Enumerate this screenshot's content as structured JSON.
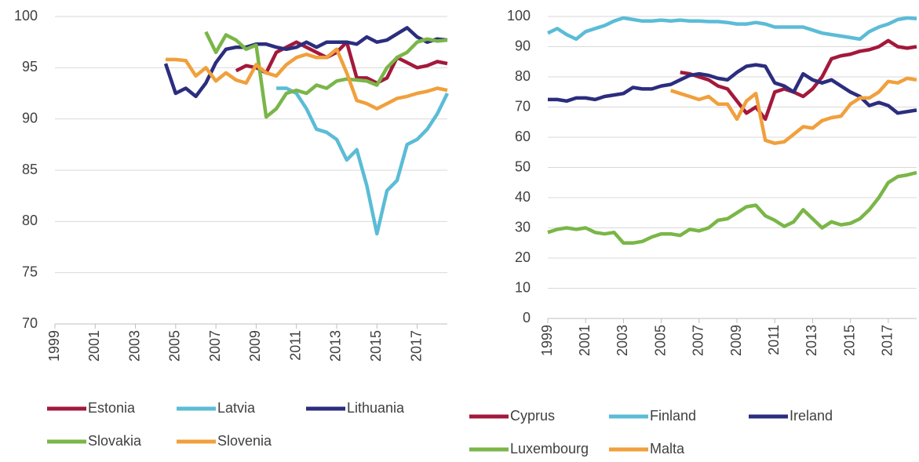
{
  "chart_data": [
    {
      "type": "line",
      "x": [
        1999,
        1999.5,
        2000,
        2000.5,
        2001,
        2001.5,
        2002,
        2002.5,
        2003,
        2003.5,
        2004,
        2004.5,
        2005,
        2005.5,
        2006,
        2006.5,
        2007,
        2007.5,
        2008,
        2008.5,
        2009,
        2009.5,
        2010,
        2010.5,
        2011,
        2011.5,
        2012,
        2012.5,
        2013,
        2013.5,
        2014,
        2014.5,
        2015,
        2015.5,
        2016,
        2016.5,
        2017,
        2017.5,
        2018,
        2018.5
      ],
      "xlim": [
        1999,
        2018.5
      ],
      "xticks": [
        1999,
        2001,
        2003,
        2005,
        2007,
        2009,
        2011,
        2013,
        2015,
        2017
      ],
      "ylim": [
        70,
        100
      ],
      "yticks": [
        70,
        75,
        80,
        85,
        90,
        95,
        100
      ],
      "grid": true,
      "series": [
        {
          "name": "Estonia",
          "color": "#a3193b",
          "values": [
            null,
            null,
            null,
            null,
            null,
            null,
            null,
            null,
            null,
            null,
            null,
            null,
            null,
            null,
            null,
            null,
            null,
            null,
            94.7,
            95.2,
            95,
            94.5,
            96.5,
            97,
            97.5,
            97,
            96.5,
            96,
            96.5,
            97.5,
            94,
            94,
            93.5,
            94,
            96,
            95.5,
            95,
            95.2,
            95.6,
            95.4
          ]
        },
        {
          "name": "Latvia",
          "color": "#5bbcd6",
          "values": [
            null,
            null,
            null,
            null,
            null,
            null,
            null,
            null,
            null,
            null,
            null,
            null,
            null,
            null,
            null,
            null,
            null,
            null,
            null,
            null,
            null,
            null,
            93,
            93,
            92.5,
            91,
            89,
            88.7,
            88,
            86,
            87,
            83.5,
            78.8,
            83,
            84,
            87.5,
            88,
            89,
            90.5,
            92.5
          ]
        },
        {
          "name": "Lithuania",
          "color": "#2b2d7e",
          "values": [
            null,
            null,
            null,
            null,
            null,
            null,
            null,
            null,
            null,
            null,
            null,
            95.4,
            92.5,
            93,
            92.2,
            93.5,
            95.5,
            96.8,
            97,
            97,
            97.3,
            97.3,
            97,
            96.8,
            97,
            97.5,
            97,
            97.5,
            97.5,
            97.5,
            97.3,
            98,
            97.5,
            97.7,
            98.3,
            98.9,
            98,
            97.5,
            97.8,
            97.7
          ]
        },
        {
          "name": "Slovakia",
          "color": "#7ab648",
          "values": [
            null,
            null,
            null,
            null,
            null,
            null,
            null,
            null,
            null,
            null,
            null,
            null,
            null,
            null,
            null,
            98.5,
            96.5,
            98.2,
            97.7,
            96.8,
            97.2,
            90.2,
            91,
            92.5,
            92.8,
            92.5,
            93.3,
            93,
            93.7,
            93.9,
            93.8,
            93.7,
            93.3,
            95,
            96,
            96.5,
            97.5,
            97.8,
            97.6,
            97.7
          ]
        },
        {
          "name": "Slovenia",
          "color": "#f0a03c",
          "values": [
            null,
            null,
            null,
            null,
            null,
            null,
            null,
            null,
            null,
            null,
            null,
            95.8,
            95.8,
            95.7,
            94.2,
            95,
            93.7,
            94.5,
            93.8,
            93.5,
            95.3,
            94.5,
            94.2,
            95.3,
            96,
            96.3,
            96,
            96,
            96.8,
            94.5,
            91.8,
            91.5,
            91,
            91.5,
            92,
            92.2,
            92.5,
            92.7,
            93,
            92.8
          ]
        }
      ]
    },
    {
      "type": "line",
      "x": [
        1999,
        1999.5,
        2000,
        2000.5,
        2001,
        2001.5,
        2002,
        2002.5,
        2003,
        2003.5,
        2004,
        2004.5,
        2005,
        2005.5,
        2006,
        2006.5,
        2007,
        2007.5,
        2008,
        2008.5,
        2009,
        2009.5,
        2010,
        2010.5,
        2011,
        2011.5,
        2012,
        2012.5,
        2013,
        2013.5,
        2014,
        2014.5,
        2015,
        2015.5,
        2016,
        2016.5,
        2017,
        2017.5,
        2018,
        2018.5
      ],
      "xlim": [
        1999,
        2018.5
      ],
      "xticks": [
        1999,
        2001,
        2003,
        2005,
        2007,
        2009,
        2011,
        2013,
        2015,
        2017
      ],
      "ylim": [
        0,
        100
      ],
      "yticks": [
        0,
        10,
        20,
        30,
        40,
        50,
        60,
        70,
        80,
        90,
        100
      ],
      "grid": true,
      "series": [
        {
          "name": "Cyprus",
          "color": "#a3193b",
          "values": [
            null,
            null,
            null,
            null,
            null,
            null,
            null,
            null,
            null,
            null,
            null,
            null,
            null,
            null,
            81.5,
            81,
            80,
            79,
            77,
            76,
            72,
            68,
            70,
            66,
            75,
            76,
            75,
            73.5,
            76,
            80,
            86,
            87,
            87.5,
            88.5,
            89,
            90,
            92,
            90,
            89.5,
            90
          ]
        },
        {
          "name": "Finland",
          "color": "#5bbcd6",
          "values": [
            94.5,
            96,
            94,
            92.5,
            95,
            96,
            97,
            98.5,
            99.5,
            99,
            98.5,
            98.5,
            98.8,
            98.5,
            98.8,
            98.5,
            98.5,
            98.3,
            98.3,
            98,
            97.5,
            97.5,
            98,
            97.5,
            96.5,
            96.5,
            96.5,
            96.5,
            95.5,
            94.5,
            94,
            93.5,
            93,
            92.5,
            95,
            96.5,
            97.5,
            99,
            99.5,
            99.3
          ]
        },
        {
          "name": "Ireland",
          "color": "#2b2d7e",
          "values": [
            72.5,
            72.5,
            72,
            73,
            73,
            72.5,
            73.5,
            74,
            74.5,
            76.5,
            76,
            76,
            77,
            77.5,
            79,
            80.5,
            81,
            80.5,
            79.5,
            79,
            81.5,
            83.5,
            84,
            83.5,
            78,
            77,
            75,
            81,
            79,
            78,
            79,
            77,
            75,
            73.5,
            70.5,
            71.5,
            70.5,
            68,
            68.5,
            69
          ]
        },
        {
          "name": "Luxembourg",
          "color": "#7ab648",
          "values": [
            28.5,
            29.5,
            30,
            29.5,
            30,
            28.5,
            28,
            28.5,
            25,
            25,
            25.5,
            27,
            28,
            28,
            27.5,
            29.5,
            29,
            30,
            32.5,
            33,
            35,
            37,
            37.5,
            34,
            32.5,
            30.5,
            32,
            36,
            33,
            30,
            32,
            31,
            31.5,
            33,
            36,
            40,
            45,
            47,
            47.5,
            48.3
          ]
        },
        {
          "name": "Malta",
          "color": "#f0a03c",
          "values": [
            null,
            null,
            null,
            null,
            null,
            null,
            null,
            null,
            null,
            null,
            null,
            null,
            null,
            75.5,
            74.5,
            73.5,
            72.5,
            73.5,
            71,
            71,
            66,
            72,
            74.5,
            59,
            58,
            58.5,
            61,
            63.5,
            63,
            65.5,
            66.5,
            67,
            71,
            73,
            73,
            75,
            78.5,
            78,
            79.5,
            79
          ]
        }
      ]
    }
  ]
}
